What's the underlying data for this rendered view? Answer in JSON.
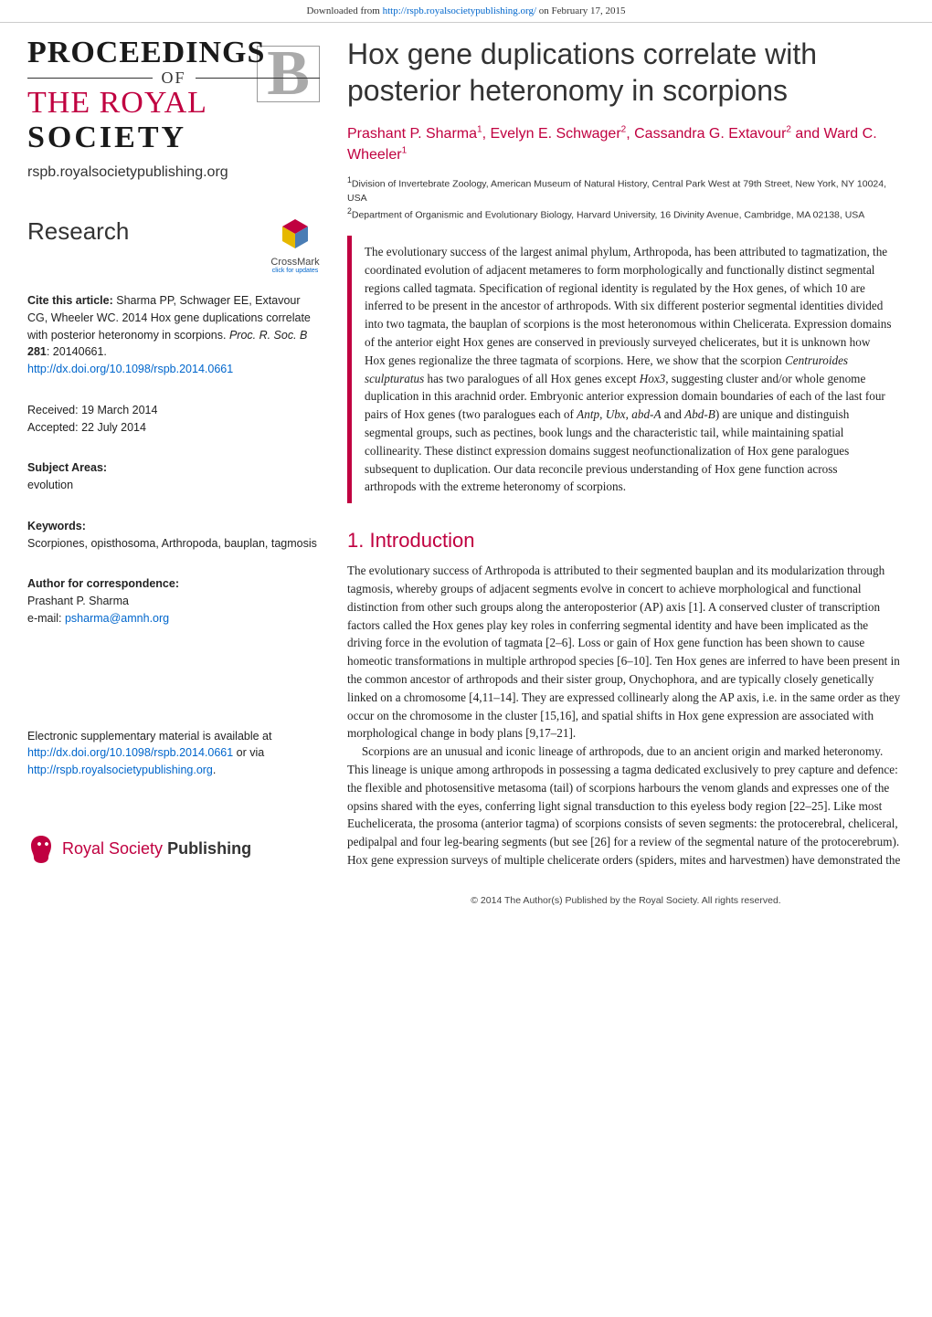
{
  "banner": {
    "prefix": "Downloaded from ",
    "url": "http://rspb.royalsocietypublishing.org/",
    "suffix": " on February 17, 2015"
  },
  "journal_logo": {
    "line1": "PROCEEDINGS",
    "of": "OF",
    "line2": "THE ROYAL",
    "line3": "SOCIETY",
    "letter": "B",
    "url": "rspb.royalsocietypublishing.org"
  },
  "colors": {
    "brand": "#c00040",
    "link": "#0066cc",
    "text": "#222222",
    "muted": "#333333",
    "logo_b": "#aaaaaa",
    "abstract_border": "#c00040"
  },
  "typography": {
    "title_fontsize": 32,
    "authors_fontsize": 16,
    "body_fontsize": 13.2,
    "meta_fontsize": 12.5,
    "sec_heading_fontsize": 22,
    "body_family": "Georgia, serif",
    "sans_family": "Arial, Helvetica, sans-serif"
  },
  "section_label": "Research",
  "crossmark": {
    "label": "CrossMark",
    "sub": "click for updates"
  },
  "citation": {
    "label": "Cite this article:",
    "text_1": " Sharma PP, Schwager EE, Extavour CG, Wheeler WC. 2014 Hox gene duplications correlate with posterior heteronomy in scorpions. ",
    "journal": "Proc. R. Soc. B",
    "vol": " 281",
    "pages": ": 20140661.",
    "doi": "http://dx.doi.org/10.1098/rspb.2014.0661"
  },
  "dates": {
    "received_label": "Received:",
    "received": " 19 March 2014",
    "accepted_label": "Accepted:",
    "accepted": " 22 July 2014"
  },
  "subject": {
    "label": "Subject Areas:",
    "value": "evolution"
  },
  "keywords": {
    "label": "Keywords:",
    "value": "Scorpiones, opisthosoma, Arthropoda, bauplan, tagmosis"
  },
  "correspondence": {
    "label": "Author for correspondence:",
    "name": "Prashant P. Sharma",
    "email_label": "e-mail: ",
    "email": "psharma@amnh.org"
  },
  "esm": {
    "text_1": "Electronic supplementary material is available at ",
    "url": "http://dx.doi.org/10.1098/rspb.2014.0661",
    "text_2": " or via ",
    "url2": "http://rspb.royalsocietypublishing.org"
  },
  "publisher_logo": {
    "rs": "Royal Society ",
    "pub": "Publishing"
  },
  "article": {
    "title": "Hox gene duplications correlate with posterior heteronomy in scorpions",
    "authors_html": "Prashant P. Sharma<sup>1</sup>, Evelyn E. Schwager<sup>2</sup>, Cassandra G. Extavour<sup>2</sup> and Ward C. Wheeler<sup>1</sup>",
    "affiliations": [
      "<sup>1</sup>Division of Invertebrate Zoology, American Museum of Natural History, Central Park West at 79th Street, New York, NY 10024, USA",
      "<sup>2</sup>Department of Organismic and Evolutionary Biology, Harvard University, 16 Divinity Avenue, Cambridge, MA 02138, USA"
    ],
    "abstract": "The evolutionary success of the largest animal phylum, Arthropoda, has been attributed to tagmatization, the coordinated evolution of adjacent metameres to form morphologically and functionally distinct segmental regions called tagmata. Specification of regional identity is regulated by the Hox genes, of which 10 are inferred to be present in the ancestor of arthropods. With six different posterior segmental identities divided into two tagmata, the bauplan of scorpions is the most heteronomous within Chelicerata. Expression domains of the anterior eight Hox genes are conserved in previously surveyed chelicerates, but it is unknown how Hox genes regionalize the three tagmata of scorpions. Here, we show that the scorpion <span class=\"ital\">Centruroides sculpturatus</span> has two paralogues of all Hox genes except <span class=\"ital\">Hox3</span>, suggesting cluster and/or whole genome duplication in this arachnid order. Embryonic anterior expression domain boundaries of each of the last four pairs of Hox genes (two paralogues each of <span class=\"ital\">Antp</span>, <span class=\"ital\">Ubx</span>, <span class=\"ital\">abd-A</span> and <span class=\"ital\">Abd-B</span>) are unique and distinguish segmental groups, such as pectines, book lungs and the characteristic tail, while maintaining spatial collinearity. These distinct expression domains suggest neofunctionalization of Hox gene paralogues subsequent to duplication. Our data reconcile previous understanding of Hox gene function across arthropods with the extreme heteronomy of scorpions."
  },
  "sections": {
    "intro_heading": "1. Introduction",
    "intro_paragraphs": [
      "The evolutionary success of Arthropoda is attributed to their segmented bauplan and its modularization through tagmosis, whereby groups of adjacent segments evolve in concert to achieve morphological and functional distinction from other such groups along the anteroposterior (AP) axis [1]. A conserved cluster of transcription factors called the Hox genes play key roles in conferring segmental identity and have been implicated as the driving force in the evolution of tagmata [2–6]. Loss or gain of Hox gene function has been shown to cause homeotic transformations in multiple arthropod species [6–10]. Ten Hox genes are inferred to have been present in the common ancestor of arthropods and their sister group, Onychophora, and are typically closely genetically linked on a chromosome [4,11–14]. They are expressed collinearly along the AP axis, i.e. in the same order as they occur on the chromosome in the cluster [15,16], and spatial shifts in Hox gene expression are associated with morphological change in body plans [9,17–21].",
      "Scorpions are an unusual and iconic lineage of arthropods, due to an ancient origin and marked heteronomy. This lineage is unique among arthropods in possessing a tagma dedicated exclusively to prey capture and defence: the flexible and photosensitive metasoma (tail) of scorpions harbours the venom glands and expresses one of the opsins shared with the eyes, conferring light signal transduction to this eyeless body region [22–25]. Like most Euchelicerata, the prosoma (anterior tagma) of scorpions consists of seven segments: the protocerebral, cheliceral, pedipalpal and four leg-bearing segments (but see [26] for a review of the segmental nature of the protocerebrum). Hox gene expression surveys of multiple chelicerate orders (spiders, mites and harvestmen) have demonstrated the"
    ]
  },
  "footer": "© 2014 The Author(s) Published by the Royal Society. All rights reserved."
}
